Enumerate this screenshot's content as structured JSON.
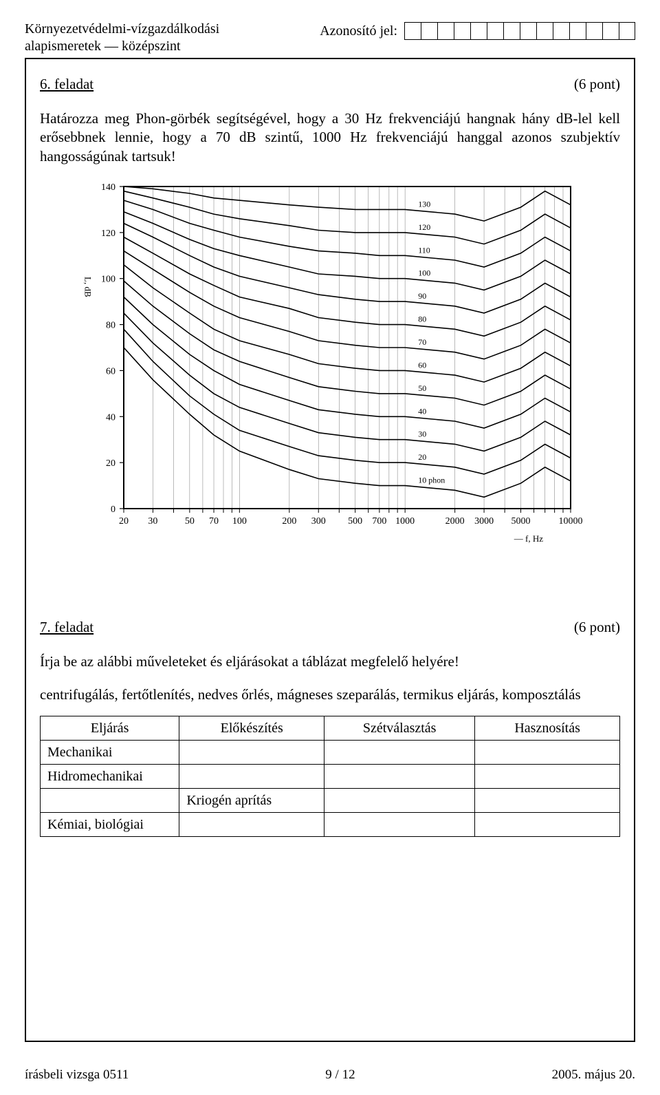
{
  "header": {
    "subject_line1": "Környezetvédelmi-vízgazdálkodási",
    "subject_line2": "alapismeretek — középszint",
    "id_label": "Azonosító jel:",
    "id_cell_count": 14
  },
  "task6": {
    "label": "6. feladat",
    "points": "(6 pont)",
    "body": "Határozza meg Phon-görbék segítségével, hogy a 30 Hz frekvenciájú hangnak hány dB-lel kell erősebbnek lennie, hogy a 70 dB szintű, 1000 Hz frekvenciájú hanggal azonos szubjektív hangosságúnak tartsuk!"
  },
  "phon_chart": {
    "type": "line",
    "background_color": "#ffffff",
    "axis_color": "#000000",
    "curve_color": "#000000",
    "font_family": "serif",
    "tick_fontsize": 14,
    "curve_label_fontsize": 12,
    "ylabel": "L, dB",
    "ylabel_fontsize": 13,
    "xlabel": "f, Hz",
    "xlabel_fontsize": 13,
    "ylim": [
      0,
      140
    ],
    "yticks": [
      0,
      20,
      40,
      60,
      80,
      100,
      120,
      140
    ],
    "xscale": "log",
    "xlim": [
      20,
      10000
    ],
    "xticks": [
      20,
      30,
      50,
      70,
      100,
      200,
      300,
      500,
      700,
      1000,
      2000,
      3000,
      5000,
      10000
    ],
    "grid_color": "#000000",
    "curve_linewidth": 1.6,
    "curves": [
      {
        "phon": 10,
        "label": "10 phon",
        "points": [
          [
            20,
            70
          ],
          [
            30,
            56
          ],
          [
            50,
            41
          ],
          [
            70,
            32
          ],
          [
            100,
            25
          ],
          [
            200,
            17
          ],
          [
            300,
            13
          ],
          [
            500,
            11
          ],
          [
            700,
            10
          ],
          [
            1000,
            10
          ],
          [
            2000,
            8
          ],
          [
            3000,
            5
          ],
          [
            5000,
            11
          ],
          [
            7000,
            18
          ],
          [
            10000,
            12
          ]
        ]
      },
      {
        "phon": 20,
        "label": "20",
        "points": [
          [
            20,
            78
          ],
          [
            30,
            64
          ],
          [
            50,
            49
          ],
          [
            70,
            41
          ],
          [
            100,
            34
          ],
          [
            200,
            27
          ],
          [
            300,
            23
          ],
          [
            500,
            21
          ],
          [
            700,
            20
          ],
          [
            1000,
            20
          ],
          [
            2000,
            18
          ],
          [
            3000,
            15
          ],
          [
            5000,
            21
          ],
          [
            7000,
            28
          ],
          [
            10000,
            22
          ]
        ]
      },
      {
        "phon": 30,
        "label": "30",
        "points": [
          [
            20,
            85
          ],
          [
            30,
            72
          ],
          [
            50,
            58
          ],
          [
            70,
            50
          ],
          [
            100,
            44
          ],
          [
            200,
            37
          ],
          [
            300,
            33
          ],
          [
            500,
            31
          ],
          [
            700,
            30
          ],
          [
            1000,
            30
          ],
          [
            2000,
            28
          ],
          [
            3000,
            25
          ],
          [
            5000,
            31
          ],
          [
            7000,
            38
          ],
          [
            10000,
            32
          ]
        ]
      },
      {
        "phon": 40,
        "label": "40",
        "points": [
          [
            20,
            92
          ],
          [
            30,
            80
          ],
          [
            50,
            67
          ],
          [
            70,
            60
          ],
          [
            100,
            54
          ],
          [
            200,
            47
          ],
          [
            300,
            43
          ],
          [
            500,
            41
          ],
          [
            700,
            40
          ],
          [
            1000,
            40
          ],
          [
            2000,
            38
          ],
          [
            3000,
            35
          ],
          [
            5000,
            41
          ],
          [
            7000,
            48
          ],
          [
            10000,
            42
          ]
        ]
      },
      {
        "phon": 50,
        "label": "50",
        "points": [
          [
            20,
            99
          ],
          [
            30,
            88
          ],
          [
            50,
            76
          ],
          [
            70,
            69
          ],
          [
            100,
            64
          ],
          [
            200,
            57
          ],
          [
            300,
            53
          ],
          [
            500,
            51
          ],
          [
            700,
            50
          ],
          [
            1000,
            50
          ],
          [
            2000,
            48
          ],
          [
            3000,
            45
          ],
          [
            5000,
            51
          ],
          [
            7000,
            58
          ],
          [
            10000,
            52
          ]
        ]
      },
      {
        "phon": 60,
        "label": "60",
        "points": [
          [
            20,
            106
          ],
          [
            30,
            96
          ],
          [
            50,
            85
          ],
          [
            70,
            78
          ],
          [
            100,
            73
          ],
          [
            200,
            67
          ],
          [
            300,
            63
          ],
          [
            500,
            61
          ],
          [
            700,
            60
          ],
          [
            1000,
            60
          ],
          [
            2000,
            58
          ],
          [
            3000,
            55
          ],
          [
            5000,
            61
          ],
          [
            7000,
            68
          ],
          [
            10000,
            62
          ]
        ]
      },
      {
        "phon": 70,
        "label": "70",
        "points": [
          [
            20,
            112
          ],
          [
            30,
            104
          ],
          [
            50,
            94
          ],
          [
            70,
            88
          ],
          [
            100,
            83
          ],
          [
            200,
            77
          ],
          [
            300,
            73
          ],
          [
            500,
            71
          ],
          [
            700,
            70
          ],
          [
            1000,
            70
          ],
          [
            2000,
            68
          ],
          [
            3000,
            65
          ],
          [
            5000,
            71
          ],
          [
            7000,
            78
          ],
          [
            10000,
            72
          ]
        ]
      },
      {
        "phon": 80,
        "label": "80",
        "points": [
          [
            20,
            118
          ],
          [
            30,
            111
          ],
          [
            50,
            102
          ],
          [
            70,
            97
          ],
          [
            100,
            92
          ],
          [
            200,
            87
          ],
          [
            300,
            83
          ],
          [
            500,
            81
          ],
          [
            700,
            80
          ],
          [
            1000,
            80
          ],
          [
            2000,
            78
          ],
          [
            3000,
            75
          ],
          [
            5000,
            81
          ],
          [
            7000,
            88
          ],
          [
            10000,
            82
          ]
        ]
      },
      {
        "phon": 90,
        "label": "90",
        "points": [
          [
            20,
            124
          ],
          [
            30,
            118
          ],
          [
            50,
            110
          ],
          [
            70,
            105
          ],
          [
            100,
            101
          ],
          [
            200,
            96
          ],
          [
            300,
            93
          ],
          [
            500,
            91
          ],
          [
            700,
            90
          ],
          [
            1000,
            90
          ],
          [
            2000,
            88
          ],
          [
            3000,
            85
          ],
          [
            5000,
            91
          ],
          [
            7000,
            98
          ],
          [
            10000,
            92
          ]
        ]
      },
      {
        "phon": 100,
        "label": "100",
        "points": [
          [
            20,
            129
          ],
          [
            30,
            124
          ],
          [
            50,
            117
          ],
          [
            70,
            113
          ],
          [
            100,
            110
          ],
          [
            200,
            105
          ],
          [
            300,
            102
          ],
          [
            500,
            101
          ],
          [
            700,
            100
          ],
          [
            1000,
            100
          ],
          [
            2000,
            98
          ],
          [
            3000,
            95
          ],
          [
            5000,
            101
          ],
          [
            7000,
            108
          ],
          [
            10000,
            102
          ]
        ]
      },
      {
        "phon": 110,
        "label": "110",
        "points": [
          [
            20,
            134
          ],
          [
            30,
            130
          ],
          [
            50,
            124
          ],
          [
            70,
            121
          ],
          [
            100,
            118
          ],
          [
            200,
            114
          ],
          [
            300,
            112
          ],
          [
            500,
            111
          ],
          [
            700,
            110
          ],
          [
            1000,
            110
          ],
          [
            2000,
            108
          ],
          [
            3000,
            105
          ],
          [
            5000,
            111
          ],
          [
            7000,
            118
          ],
          [
            10000,
            112
          ]
        ]
      },
      {
        "phon": 120,
        "label": "120",
        "points": [
          [
            20,
            138
          ],
          [
            30,
            135
          ],
          [
            50,
            131
          ],
          [
            70,
            128
          ],
          [
            100,
            126
          ],
          [
            200,
            123
          ],
          [
            300,
            121
          ],
          [
            500,
            120
          ],
          [
            700,
            120
          ],
          [
            1000,
            120
          ],
          [
            2000,
            118
          ],
          [
            3000,
            115
          ],
          [
            5000,
            121
          ],
          [
            7000,
            128
          ],
          [
            10000,
            122
          ]
        ]
      },
      {
        "phon": 130,
        "label": "130",
        "points": [
          [
            20,
            140
          ],
          [
            30,
            139
          ],
          [
            50,
            137
          ],
          [
            70,
            135
          ],
          [
            100,
            134
          ],
          [
            200,
            132
          ],
          [
            300,
            131
          ],
          [
            500,
            130
          ],
          [
            700,
            130
          ],
          [
            1000,
            130
          ],
          [
            2000,
            128
          ],
          [
            3000,
            125
          ],
          [
            5000,
            131
          ],
          [
            7000,
            138
          ],
          [
            10000,
            132
          ]
        ]
      }
    ],
    "vertical_grid_x": [
      20,
      30,
      40,
      50,
      60,
      70,
      80,
      90,
      100,
      200,
      300,
      400,
      500,
      600,
      700,
      800,
      900,
      1000,
      2000,
      3000,
      4000,
      5000,
      6000,
      7000,
      8000,
      9000,
      10000
    ]
  },
  "task7": {
    "label": "7. feladat",
    "points": "(6 pont)",
    "instruction": "Írja be az alábbi műveleteket és eljárásokat a táblázat megfelelő helyére!",
    "words": "centrifugálás, fertőtlenítés, nedves őrlés, mágneses szeparálás, termikus eljárás, komposztálás",
    "table": {
      "columns": [
        "Eljárás",
        "Előkészítés",
        "Szétválasztás",
        "Hasznosítás"
      ],
      "rows": [
        [
          "Mechanikai",
          "",
          "",
          ""
        ],
        [
          "Hidromechanikai",
          "",
          "",
          ""
        ],
        [
          "",
          "Kriogén aprítás",
          "",
          ""
        ],
        [
          "Kémiai, biológiai",
          "",
          "",
          ""
        ]
      ],
      "col_widths_pct": [
        24,
        25,
        26,
        25
      ]
    }
  },
  "footer": {
    "left": "írásbeli vizsga 0511",
    "center": "9 / 12",
    "right": "2005. május 20."
  }
}
